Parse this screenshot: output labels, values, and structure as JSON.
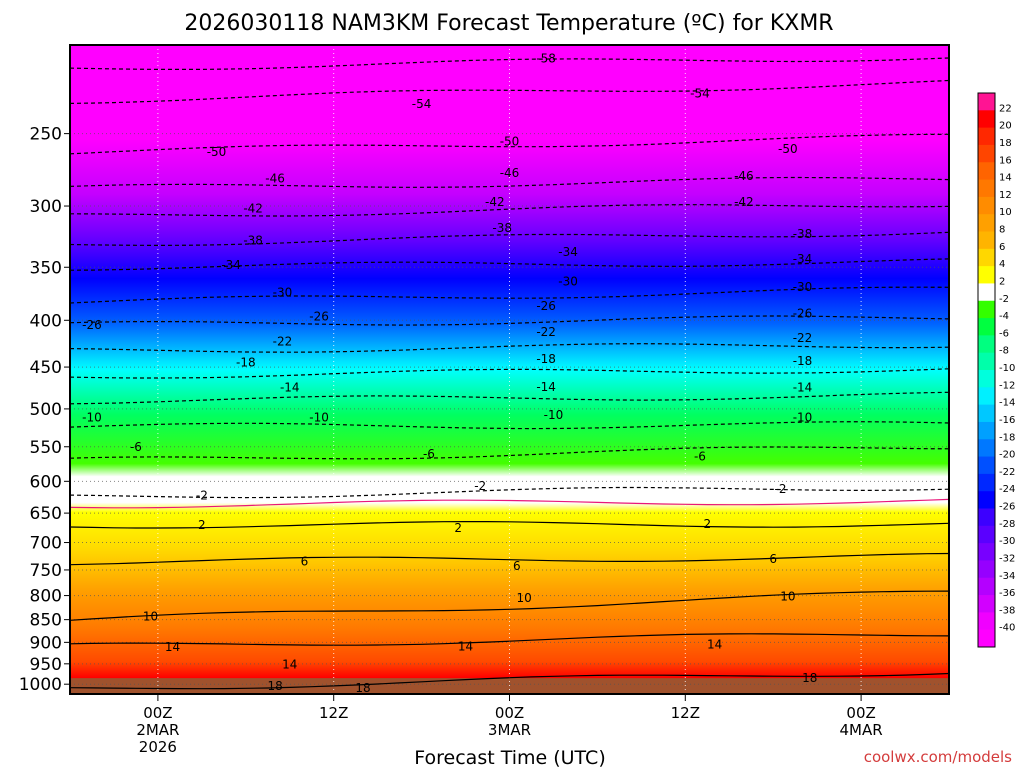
{
  "chart_data": {
    "type": "heatmap",
    "title": "2026030118 NAM3KM Forecast Temperature (ºC) for KXMR",
    "xlabel": "Forecast Time (UTC)",
    "ylabel": "",
    "credit": "coolwx.com/models",
    "y_axis": {
      "scale": "log-pressure",
      "ylim": [
        1025,
        200
      ],
      "ticks": [
        250,
        300,
        350,
        400,
        450,
        500,
        550,
        600,
        650,
        700,
        750,
        800,
        850,
        900,
        950,
        1000
      ],
      "tick_labels": [
        "250",
        "300",
        "350",
        "400",
        "450",
        "500",
        "550",
        "600",
        "650",
        "700",
        "750",
        "800",
        "850",
        "900",
        "950",
        "1000"
      ]
    },
    "x_axis": {
      "unit": "hours since 2026-03-01 18Z",
      "xlim": [
        0,
        60
      ],
      "ticks": [
        {
          "hour": 6,
          "lines": [
            "00Z",
            "2MAR",
            "2026"
          ]
        },
        {
          "hour": 18,
          "lines": [
            "12Z"
          ]
        },
        {
          "hour": 30,
          "lines": [
            "00Z",
            "3MAR"
          ]
        },
        {
          "hour": 42,
          "lines": [
            "12Z"
          ]
        },
        {
          "hour": 54,
          "lines": [
            "00Z",
            "4MAR"
          ]
        }
      ]
    },
    "colorbar": {
      "labels": [
        "22",
        "20",
        "18",
        "16",
        "14",
        "12",
        "10",
        "8",
        "6",
        "4",
        "2",
        "-2",
        "-4",
        "-6",
        "-8",
        "-10",
        "-12",
        "-14",
        "-16",
        "-18",
        "-20",
        "-22",
        "-24",
        "-26",
        "-28",
        "-30",
        "-32",
        "-34",
        "-36",
        "-38",
        "-40"
      ],
      "colors": [
        "#ff1493",
        "#ff0000",
        "#ff2800",
        "#ff4500",
        "#ff6400",
        "#ff7800",
        "#ff8c00",
        "#ffa000",
        "#ffb400",
        "#ffd700",
        "#ffff00",
        "#ffffff",
        "#33ff00",
        "#00ff40",
        "#00ff80",
        "#00ffaa",
        "#00ffdd",
        "#00f0ff",
        "#00c8ff",
        "#00a0ff",
        "#0078ff",
        "#0050ff",
        "#0028ff",
        "#0000ff",
        "#3c00ff",
        "#5a00ff",
        "#7800ff",
        "#9600ff",
        "#b400ff",
        "#d200ff",
        "#f000ff",
        "#ff00ff"
      ]
    },
    "isotherms": [
      {
        "value": "-58",
        "p_start": 212,
        "p_end": 206,
        "labels": [
          {
            "hour": 32.5,
            "p": 207
          }
        ]
      },
      {
        "value": "-54",
        "p_start": 230,
        "p_end": 220,
        "labels": [
          {
            "hour": 24,
            "p": 232
          },
          {
            "hour": 43,
            "p": 226
          }
        ]
      },
      {
        "value": "-50",
        "p_start": 262,
        "p_end": 252,
        "labels": [
          {
            "hour": 10,
            "p": 262
          },
          {
            "hour": 30,
            "p": 255
          },
          {
            "hour": 49,
            "p": 260
          }
        ]
      },
      {
        "value": "-46",
        "p_start": 287,
        "p_end": 280,
        "labels": [
          {
            "hour": 14,
            "p": 280
          },
          {
            "hour": 30,
            "p": 276
          },
          {
            "hour": 46,
            "p": 278
          }
        ]
      },
      {
        "value": "-42",
        "p_start": 308,
        "p_end": 298,
        "labels": [
          {
            "hour": 12.5,
            "p": 302
          },
          {
            "hour": 29,
            "p": 297
          },
          {
            "hour": 46,
            "p": 297
          }
        ]
      },
      {
        "value": "-38",
        "p_start": 330,
        "p_end": 320,
        "labels": [
          {
            "hour": 12.5,
            "p": 327
          },
          {
            "hour": 29.5,
            "p": 317
          },
          {
            "hour": 50,
            "p": 322
          }
        ]
      },
      {
        "value": "-34",
        "p_start": 350,
        "p_end": 345,
        "labels": [
          {
            "hour": 11,
            "p": 348
          },
          {
            "hour": 34,
            "p": 337
          },
          {
            "hour": 50,
            "p": 343
          }
        ]
      },
      {
        "value": "-30",
        "p_start": 382,
        "p_end": 370,
        "labels": [
          {
            "hour": 14.5,
            "p": 373
          },
          {
            "hour": 34,
            "p": 363
          },
          {
            "hour": 50,
            "p": 368
          }
        ]
      },
      {
        "value": "-26",
        "p_start": 405,
        "p_end": 397,
        "labels": [
          {
            "hour": 1.5,
            "p": 405
          },
          {
            "hour": 17,
            "p": 396
          },
          {
            "hour": 32.5,
            "p": 386
          },
          {
            "hour": 50,
            "p": 393
          }
        ]
      },
      {
        "value": "-22",
        "p_start": 432,
        "p_end": 425,
        "labels": [
          {
            "hour": 14.5,
            "p": 422
          },
          {
            "hour": 32.5,
            "p": 412
          },
          {
            "hour": 50,
            "p": 418
          }
        ]
      },
      {
        "value": "-18",
        "p_start": 460,
        "p_end": 452,
        "labels": [
          {
            "hour": 12,
            "p": 445
          },
          {
            "hour": 32.5,
            "p": 441
          },
          {
            "hour": 50,
            "p": 443
          }
        ]
      },
      {
        "value": "-14",
        "p_start": 490,
        "p_end": 483,
        "labels": [
          {
            "hour": 15,
            "p": 474
          },
          {
            "hour": 32.5,
            "p": 473
          },
          {
            "hour": 50,
            "p": 474
          }
        ]
      },
      {
        "value": "-10",
        "p_start": 523,
        "p_end": 520,
        "labels": [
          {
            "hour": 1.5,
            "p": 511
          },
          {
            "hour": 17,
            "p": 511
          },
          {
            "hour": 33,
            "p": 508
          },
          {
            "hour": 50,
            "p": 511
          }
        ]
      },
      {
        "value": "-6",
        "p_start": 570,
        "p_end": 550,
        "labels": [
          {
            "hour": 4.5,
            "p": 550
          },
          {
            "hour": 24.5,
            "p": 560
          },
          {
            "hour": 43,
            "p": 564
          }
        ]
      },
      {
        "value": "-2",
        "p_start": 624,
        "p_end": 608,
        "labels": [
          {
            "hour": 9,
            "p": 622
          },
          {
            "hour": 28,
            "p": 607
          },
          {
            "hour": 48.5,
            "p": 612
          }
        ]
      },
      {
        "value": "2",
        "p_start": 670,
        "p_end": 668,
        "labels": [
          {
            "hour": 9,
            "p": 670
          },
          {
            "hour": 26.5,
            "p": 675
          },
          {
            "hour": 43.5,
            "p": 668
          }
        ]
      },
      {
        "value": "6",
        "p_start": 735,
        "p_end": 725,
        "labels": [
          {
            "hour": 16,
            "p": 734
          },
          {
            "hour": 30.5,
            "p": 743
          },
          {
            "hour": 48,
            "p": 730
          }
        ]
      },
      {
        "value": "10",
        "p_start": 852,
        "p_end": 793,
        "labels": [
          {
            "hour": 5.5,
            "p": 843
          },
          {
            "hour": 31,
            "p": 805
          },
          {
            "hour": 49,
            "p": 802
          }
        ]
      },
      {
        "value": "14",
        "p_start": 910,
        "p_end": 880,
        "labels": [
          {
            "hour": 7,
            "p": 911
          },
          {
            "hour": 15,
            "p": 952
          },
          {
            "hour": 27,
            "p": 910
          },
          {
            "hour": 44,
            "p": 905
          }
        ]
      },
      {
        "value": "18",
        "p_start": 1012,
        "p_end": 968,
        "labels": [
          {
            "hour": 14,
            "p": 1005
          },
          {
            "hour": 20,
            "p": 1010
          },
          {
            "hour": 50.5,
            "p": 985
          }
        ]
      },
      {
        "value": "freezing",
        "p_start": 637,
        "p_end": 630,
        "labels": []
      }
    ]
  }
}
